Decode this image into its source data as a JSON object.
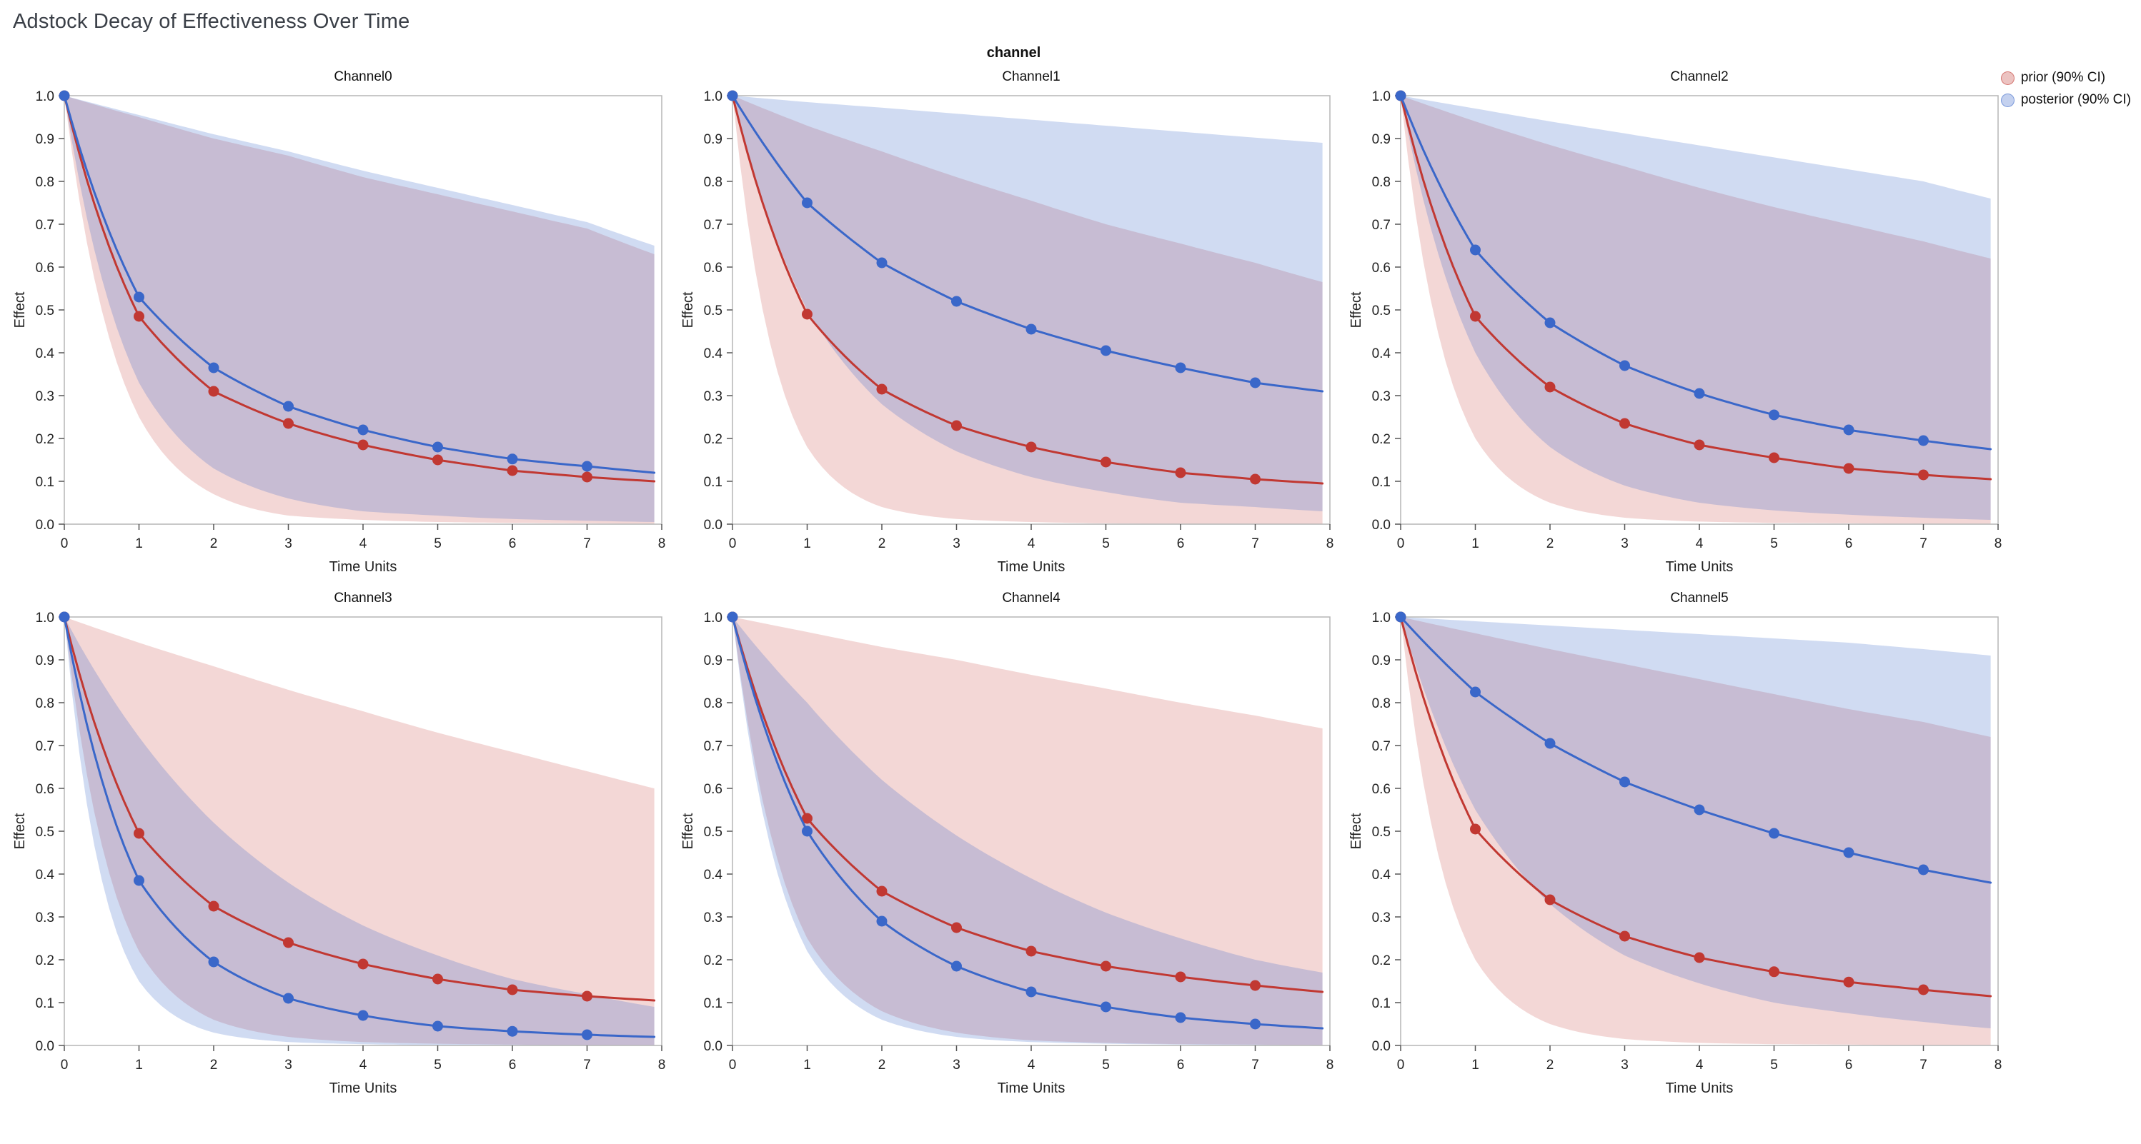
{
  "page_title": "Adstock Decay of Effectiveness Over Time",
  "chart_data": {
    "type": "line",
    "suptitle": "channel",
    "xlabel": "Time Units",
    "ylabel": "Effect",
    "xlim": [
      0,
      8
    ],
    "ylim": [
      0.0,
      1.0
    ],
    "x_ticks": [
      0,
      1,
      2,
      3,
      4,
      5,
      6,
      7,
      8
    ],
    "y_ticks": [
      0.0,
      0.1,
      0.2,
      0.3,
      0.4,
      0.5,
      0.6,
      0.7,
      0.8,
      0.9,
      1.0
    ],
    "grid": false,
    "legend_position": "outside-upper-right",
    "colors": {
      "prior": "#c13832",
      "posterior": "#3a67c9",
      "prior_band_opacity": 0.2,
      "posterior_band_opacity": 0.24
    },
    "legend": [
      {
        "label": "prior (90% CI)",
        "color": "#c13832"
      },
      {
        "label": "posterior (90% CI)",
        "color": "#3a67c9"
      }
    ],
    "x_dots": [
      0,
      1,
      2,
      3,
      4,
      5,
      6,
      7
    ],
    "x_curve": [
      0,
      1,
      2,
      3,
      4,
      5,
      6,
      7,
      7.9
    ],
    "channels": [
      {
        "name": "Channel0",
        "prior_mean": [
          1.0,
          0.485,
          0.31,
          0.235,
          0.185,
          0.15,
          0.125,
          0.11,
          0.1
        ],
        "posterior_mean": [
          1.0,
          0.53,
          0.365,
          0.275,
          0.22,
          0.18,
          0.152,
          0.135,
          0.12
        ],
        "prior_band_upper": [
          1.0,
          0.95,
          0.9,
          0.86,
          0.81,
          0.77,
          0.73,
          0.69,
          0.63
        ],
        "prior_band_lower": [
          1.0,
          0.25,
          0.07,
          0.02,
          0.01,
          0.005,
          0.003,
          0.002,
          0.001
        ],
        "posterior_band_upper": [
          1.0,
          0.955,
          0.91,
          0.87,
          0.825,
          0.785,
          0.745,
          0.705,
          0.65
        ],
        "posterior_band_lower": [
          1.0,
          0.33,
          0.13,
          0.06,
          0.03,
          0.02,
          0.012,
          0.008,
          0.005
        ]
      },
      {
        "name": "Channel1",
        "prior_mean": [
          1.0,
          0.49,
          0.315,
          0.23,
          0.18,
          0.145,
          0.12,
          0.105,
          0.095
        ],
        "posterior_mean": [
          1.0,
          0.75,
          0.61,
          0.52,
          0.455,
          0.405,
          0.365,
          0.33,
          0.31
        ],
        "prior_band_upper": [
          1.0,
          0.93,
          0.87,
          0.81,
          0.755,
          0.7,
          0.655,
          0.61,
          0.565
        ],
        "prior_band_lower": [
          1.0,
          0.18,
          0.04,
          0.012,
          0.005,
          0.002,
          0.001,
          0.001,
          0.0
        ],
        "posterior_band_upper": [
          1.0,
          0.985,
          0.972,
          0.958,
          0.944,
          0.93,
          0.916,
          0.902,
          0.89
        ],
        "posterior_band_lower": [
          1.0,
          0.5,
          0.28,
          0.17,
          0.11,
          0.075,
          0.05,
          0.04,
          0.03
        ]
      },
      {
        "name": "Channel2",
        "prior_mean": [
          1.0,
          0.485,
          0.32,
          0.235,
          0.185,
          0.155,
          0.13,
          0.115,
          0.105
        ],
        "posterior_mean": [
          1.0,
          0.64,
          0.47,
          0.37,
          0.305,
          0.255,
          0.22,
          0.195,
          0.175
        ],
        "prior_band_upper": [
          1.0,
          0.94,
          0.885,
          0.835,
          0.785,
          0.74,
          0.7,
          0.66,
          0.62
        ],
        "prior_band_lower": [
          1.0,
          0.2,
          0.05,
          0.015,
          0.006,
          0.003,
          0.002,
          0.001,
          0.001
        ],
        "posterior_band_upper": [
          1.0,
          0.97,
          0.94,
          0.912,
          0.884,
          0.856,
          0.828,
          0.8,
          0.76
        ],
        "posterior_band_lower": [
          1.0,
          0.4,
          0.18,
          0.09,
          0.05,
          0.032,
          0.022,
          0.015,
          0.01
        ]
      },
      {
        "name": "Channel3",
        "prior_mean": [
          1.0,
          0.495,
          0.325,
          0.24,
          0.19,
          0.155,
          0.13,
          0.115,
          0.105
        ],
        "posterior_mean": [
          1.0,
          0.385,
          0.195,
          0.11,
          0.07,
          0.045,
          0.033,
          0.025,
          0.02
        ],
        "prior_band_upper": [
          1.0,
          0.94,
          0.885,
          0.83,
          0.78,
          0.73,
          0.685,
          0.64,
          0.6
        ],
        "prior_band_lower": [
          1.0,
          0.22,
          0.06,
          0.02,
          0.008,
          0.004,
          0.002,
          0.001,
          0.001
        ],
        "posterior_band_upper": [
          1.0,
          0.72,
          0.52,
          0.38,
          0.28,
          0.21,
          0.155,
          0.12,
          0.09
        ],
        "posterior_band_lower": [
          1.0,
          0.15,
          0.03,
          0.008,
          0.003,
          0.001,
          0.0,
          0.0,
          0.0
        ]
      },
      {
        "name": "Channel4",
        "prior_mean": [
          1.0,
          0.53,
          0.36,
          0.275,
          0.22,
          0.185,
          0.16,
          0.14,
          0.125
        ],
        "posterior_mean": [
          1.0,
          0.5,
          0.29,
          0.185,
          0.125,
          0.09,
          0.065,
          0.05,
          0.04
        ],
        "prior_band_upper": [
          1.0,
          0.965,
          0.93,
          0.9,
          0.865,
          0.833,
          0.8,
          0.77,
          0.74
        ],
        "prior_band_lower": [
          1.0,
          0.25,
          0.08,
          0.03,
          0.012,
          0.006,
          0.003,
          0.002,
          0.001
        ],
        "posterior_band_upper": [
          1.0,
          0.8,
          0.62,
          0.49,
          0.39,
          0.31,
          0.25,
          0.2,
          0.17
        ],
        "posterior_band_lower": [
          1.0,
          0.22,
          0.06,
          0.02,
          0.008,
          0.004,
          0.002,
          0.001,
          0.001
        ]
      },
      {
        "name": "Channel5",
        "prior_mean": [
          1.0,
          0.505,
          0.34,
          0.255,
          0.205,
          0.172,
          0.148,
          0.13,
          0.115
        ],
        "posterior_mean": [
          1.0,
          0.825,
          0.705,
          0.615,
          0.55,
          0.495,
          0.45,
          0.41,
          0.38
        ],
        "prior_band_upper": [
          1.0,
          0.962,
          0.925,
          0.89,
          0.855,
          0.82,
          0.785,
          0.755,
          0.72
        ],
        "prior_band_lower": [
          1.0,
          0.2,
          0.05,
          0.015,
          0.006,
          0.003,
          0.002,
          0.001,
          0.001
        ],
        "posterior_band_upper": [
          1.0,
          0.99,
          0.98,
          0.97,
          0.96,
          0.95,
          0.94,
          0.925,
          0.91
        ],
        "posterior_band_lower": [
          1.0,
          0.55,
          0.33,
          0.21,
          0.145,
          0.1,
          0.075,
          0.055,
          0.04
        ]
      }
    ]
  }
}
